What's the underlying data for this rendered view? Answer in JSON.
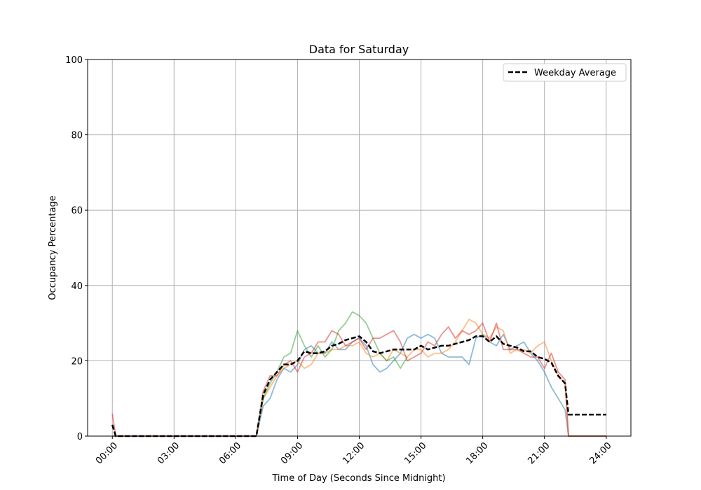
{
  "chart_data": {
    "type": "line",
    "title": "Data for Saturday",
    "xlabel": "Time of Day (Seconds Since Midnight)",
    "ylabel": "Occupancy Percentage",
    "ylim": [
      0,
      100
    ],
    "xlim": [
      "-01:12",
      "25:12"
    ],
    "grid": true,
    "legend_position": "top-right",
    "x_ticks": [
      "00:00",
      "03:00",
      "06:00",
      "09:00",
      "12:00",
      "15:00",
      "18:00",
      "21:00",
      "24:00"
    ],
    "y_ticks": [
      0,
      20,
      40,
      60,
      80,
      100
    ],
    "x": [
      "00:00",
      "00:10",
      "07:00",
      "07:20",
      "07:40",
      "08:00",
      "08:20",
      "08:40",
      "09:00",
      "09:20",
      "09:40",
      "10:00",
      "10:20",
      "10:40",
      "11:00",
      "11:20",
      "11:40",
      "12:00",
      "12:20",
      "12:40",
      "13:00",
      "13:20",
      "13:40",
      "14:00",
      "14:20",
      "14:40",
      "15:00",
      "15:20",
      "15:40",
      "16:00",
      "16:20",
      "16:40",
      "17:00",
      "17:20",
      "17:40",
      "18:00",
      "18:20",
      "18:40",
      "19:00",
      "19:20",
      "19:40",
      "20:00",
      "20:20",
      "20:40",
      "21:00",
      "21:20",
      "21:40",
      "22:00",
      "22:10",
      "24:00"
    ],
    "series": [
      {
        "color": "#1f77b4",
        "style": "solid",
        "values": [
          0,
          0,
          0,
          8,
          10,
          15,
          18,
          17,
          19,
          23,
          24,
          22,
          22,
          25,
          23,
          23,
          25,
          26,
          24,
          19,
          17,
          18,
          20,
          22,
          26,
          27,
          26,
          27,
          26,
          22,
          21,
          21,
          21,
          19,
          26,
          27,
          25,
          24,
          27,
          23,
          24,
          25,
          22,
          20,
          17,
          13,
          10,
          7,
          0,
          0
        ]
      },
      {
        "color": "#ff7f0e",
        "style": "solid",
        "values": [
          0,
          0,
          0,
          10,
          13,
          16,
          18,
          19,
          20,
          18,
          19,
          22,
          22,
          23,
          23,
          24,
          24,
          25,
          22,
          21,
          22,
          20,
          23,
          22,
          21,
          23,
          23,
          21,
          22,
          22,
          23,
          25,
          28,
          31,
          30,
          27,
          26,
          29,
          28,
          22,
          23,
          23,
          22,
          24,
          25,
          20,
          16,
          14,
          0,
          0
        ]
      },
      {
        "color": "#2ca02c",
        "style": "solid",
        "values": [
          null,
          null,
          0,
          10,
          14,
          17,
          21,
          22,
          28,
          24,
          21,
          24,
          21,
          23,
          28,
          30,
          33,
          32,
          30,
          26,
          22,
          20,
          21,
          18,
          21,
          null,
          null,
          null,
          null,
          null,
          null,
          null,
          null,
          null,
          null,
          null,
          null,
          null,
          null,
          null,
          null,
          null,
          null,
          null,
          null,
          null,
          null,
          null,
          null,
          null
        ]
      },
      {
        "color": "#d62728",
        "style": "solid",
        "values": [
          6,
          0,
          0,
          12,
          16,
          16,
          19,
          20,
          17,
          21,
          22,
          25,
          25,
          28,
          27,
          24,
          25,
          26,
          23,
          26,
          26,
          27,
          28,
          25,
          20,
          21,
          22,
          25,
          24,
          27,
          29,
          26,
          28,
          27,
          28,
          30,
          25,
          30,
          23,
          23,
          23,
          22,
          21,
          21,
          18,
          22,
          17,
          15,
          0,
          0
        ]
      },
      {
        "name": "Weekday Average",
        "color": "#000000",
        "style": "dashed",
        "values": [
          3,
          0,
          0,
          11,
          15,
          17,
          19,
          19,
          20,
          22.5,
          22,
          22,
          22.5,
          24,
          24.5,
          25.5,
          26,
          26.5,
          25,
          22.5,
          22,
          22.5,
          23,
          23,
          23,
          23,
          24,
          23,
          23.5,
          24,
          24,
          24.5,
          25,
          25.5,
          26.5,
          26.5,
          25,
          26.5,
          24.5,
          24,
          23.5,
          22.5,
          22.5,
          21,
          20.5,
          19.5,
          16,
          14,
          5.7,
          5.7
        ]
      }
    ]
  }
}
